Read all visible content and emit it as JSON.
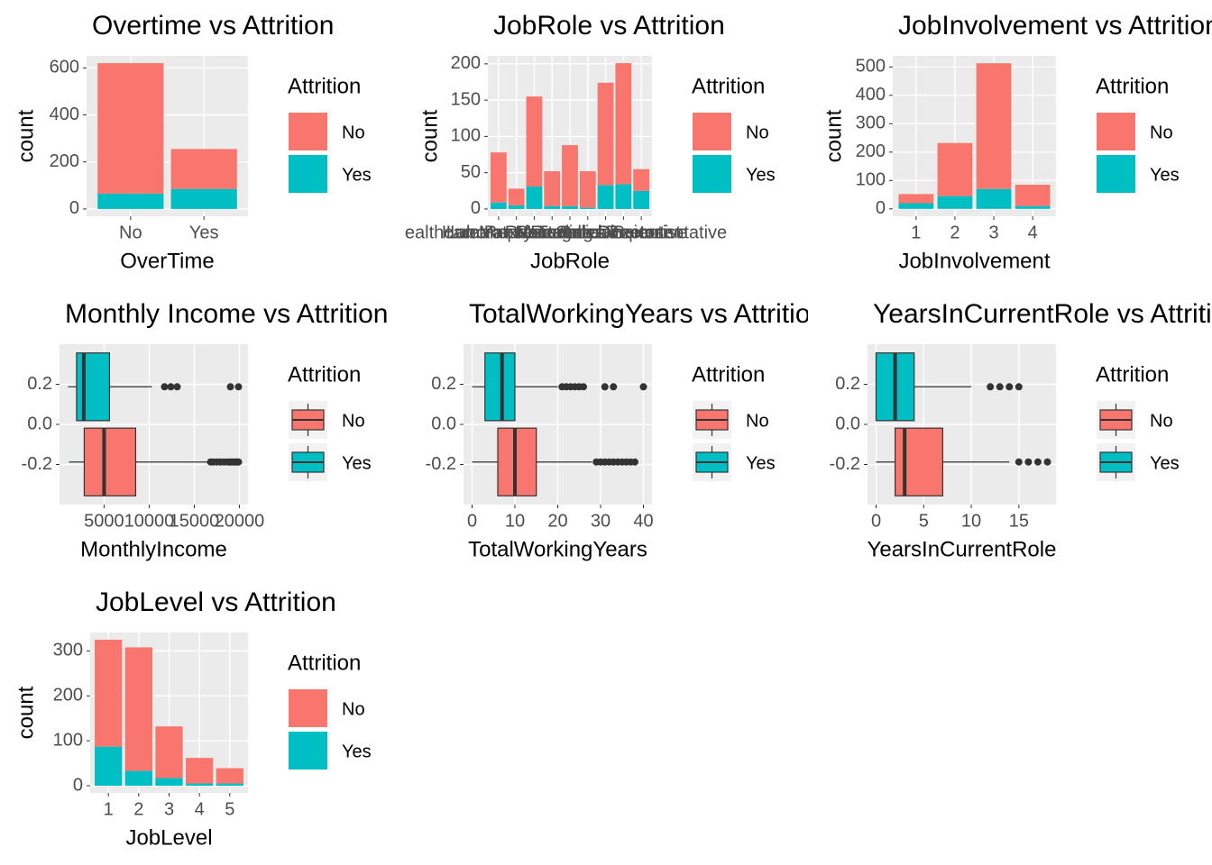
{
  "chart_data": [
    {
      "type": "bar",
      "stacked": true,
      "title": "Overtime vs Attrition",
      "x_label": "OverTime",
      "y_label": "count",
      "legend_title": "Attrition",
      "categories": [
        "No",
        "Yes"
      ],
      "series": [
        {
          "name": "No",
          "color": "#F8766D",
          "values": [
            555,
            170
          ]
        },
        {
          "name": "Yes",
          "color": "#00BFC4",
          "values": [
            65,
            85
          ]
        }
      ],
      "ylim": [
        -31,
        651
      ],
      "yticks": [
        0,
        200,
        400,
        600
      ],
      "grid": true
    },
    {
      "type": "bar",
      "stacked": true,
      "title": "JobRole vs Attrition",
      "x_label": "JobRole",
      "y_label": "count",
      "legend_title": "Attrition",
      "categories": [
        "Healthcare Representative",
        "Human Resources",
        "Laboratory Technician",
        "Manager",
        "Manufacturing Director",
        "Research Director",
        "Research Scientist",
        "Sales Executive",
        "Sales Representative"
      ],
      "series": [
        {
          "name": "No",
          "color": "#F8766D",
          "values": [
            69,
            23,
            124,
            48,
            84,
            50,
            141,
            167,
            30
          ]
        },
        {
          "name": "Yes",
          "color": "#00BFC4",
          "values": [
            9,
            5,
            31,
            4,
            4,
            2,
            33,
            34,
            25
          ]
        }
      ],
      "ylim": [
        -10,
        211
      ],
      "yticks": [
        0,
        50,
        100,
        150,
        200
      ],
      "grid": true
    },
    {
      "type": "bar",
      "stacked": true,
      "title": "JobInvolvement vs Attrition",
      "x_label": "JobInvolvement",
      "y_label": "count",
      "legend_title": "Attrition",
      "categories": [
        "1",
        "2",
        "3",
        "4"
      ],
      "series": [
        {
          "name": "No",
          "color": "#F8766D",
          "values": [
            32,
            187,
            443,
            75
          ]
        },
        {
          "name": "Yes",
          "color": "#00BFC4",
          "values": [
            20,
            45,
            70,
            10
          ]
        }
      ],
      "ylim": [
        -26,
        539
      ],
      "yticks": [
        0,
        100,
        200,
        300,
        400,
        500
      ],
      "grid": true
    },
    {
      "type": "boxplot",
      "title": "Monthly Income vs Attrition",
      "x_label": "MonthlyIncome",
      "legend_title": "Attrition",
      "series": [
        {
          "name": "No",
          "color": "#F8766D",
          "whisker_low": 1100,
          "q1": 2800,
          "median": 5000,
          "q3": 8500,
          "whisker_high": 16600,
          "outliers": [
            16800,
            17100,
            17500,
            17900,
            18300,
            18700,
            19000,
            19200,
            19400,
            19600,
            19800,
            19900
          ]
        },
        {
          "name": "Yes",
          "color": "#00BFC4",
          "whisker_low": 1009,
          "q1": 1950,
          "median": 2750,
          "q3": 5600,
          "whisker_high": 10300,
          "outliers": [
            11700,
            12400,
            13100,
            19000,
            19900
          ]
        }
      ],
      "xlim": [
        59,
        20949
      ],
      "xticks": [
        5000,
        10000,
        15000,
        20000
      ],
      "ylim": [
        -0.4,
        0.4
      ],
      "yticks": [
        -0.2,
        {
          "value": 0,
          "label": "0.0"
        },
        0.2
      ],
      "grid": true
    },
    {
      "type": "boxplot",
      "title": "TotalWorkingYears vs Attrition",
      "x_label": "TotalWorkingYears",
      "legend_title": "Attrition",
      "series": [
        {
          "name": "No",
          "color": "#F8766D",
          "whisker_low": 0,
          "q1": 6,
          "median": 10,
          "q3": 15,
          "whisker_high": 28,
          "outliers": [
            29,
            30,
            31,
            32,
            33,
            34,
            35,
            36,
            37,
            38
          ]
        },
        {
          "name": "Yes",
          "color": "#00BFC4",
          "whisker_low": 0,
          "q1": 3,
          "median": 7,
          "q3": 10,
          "whisker_high": 20,
          "outliers": [
            21,
            22,
            23,
            24,
            25,
            26,
            31,
            33,
            40
          ]
        }
      ],
      "xlim": [
        -2,
        42
      ],
      "xticks": [
        0,
        10,
        20,
        30,
        40
      ],
      "ylim": [
        -0.4,
        0.4
      ],
      "yticks": [
        -0.2,
        {
          "value": 0,
          "label": "0.0"
        },
        0.2
      ],
      "grid": true
    },
    {
      "type": "boxplot",
      "title": "YearsInCurrentRole vs Attrition",
      "x_label": "YearsInCurrentRole",
      "legend_title": "Attrition",
      "series": [
        {
          "name": "No",
          "color": "#F8766D",
          "whisker_low": 0,
          "q1": 2,
          "median": 3,
          "q3": 7,
          "whisker_high": 14,
          "outliers": [
            15,
            16,
            17,
            18
          ]
        },
        {
          "name": "Yes",
          "color": "#00BFC4",
          "whisker_low": 0,
          "q1": 0,
          "median": 2,
          "q3": 4,
          "whisker_high": 10,
          "outliers": [
            12,
            13,
            14,
            15
          ]
        }
      ],
      "xlim": [
        -0.9,
        18.9
      ],
      "xticks": [
        0,
        5,
        10,
        15
      ],
      "ylim": [
        -0.4,
        0.4
      ],
      "yticks": [
        -0.2,
        {
          "value": 0,
          "label": "0.0"
        },
        0.2
      ],
      "grid": true
    },
    {
      "type": "bar",
      "stacked": true,
      "title": "JobLevel vs Attrition",
      "x_label": "JobLevel",
      "y_label": "count",
      "legend_title": "Attrition",
      "categories": [
        "1",
        "2",
        "3",
        "4",
        "5"
      ],
      "series": [
        {
          "name": "No",
          "color": "#F8766D",
          "values": [
            238,
            275,
            115,
            57,
            34
          ]
        },
        {
          "name": "Yes",
          "color": "#00BFC4",
          "values": [
            87,
            33,
            17,
            5,
            5
          ]
        }
      ],
      "ylim": [
        -16,
        341
      ],
      "yticks": [
        0,
        100,
        200,
        300
      ],
      "grid": true
    }
  ]
}
